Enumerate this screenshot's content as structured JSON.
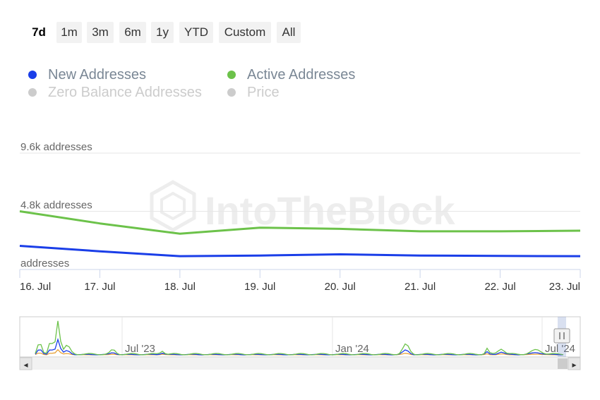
{
  "range_selector": {
    "buttons": [
      "7d",
      "1m",
      "3m",
      "6m",
      "1y",
      "YTD",
      "Custom",
      "All"
    ],
    "selected": "7d"
  },
  "legend": {
    "items": [
      {
        "label": "New Addresses",
        "color": "#1a3ee8",
        "enabled": true
      },
      {
        "label": "Active Addresses",
        "color": "#6cc24a",
        "enabled": true
      },
      {
        "label": "Zero Balance Addresses",
        "color": "#cccccc",
        "enabled": false
      },
      {
        "label": "Price",
        "color": "#cccccc",
        "enabled": false
      }
    ]
  },
  "watermark": "IntoTheBlock",
  "chart_data": {
    "type": "line",
    "x": [
      "16. Jul",
      "17. Jul",
      "18. Jul",
      "19. Jul",
      "20. Jul",
      "21. Jul",
      "22. Jul",
      "23. Jul"
    ],
    "yticks": [
      {
        "value": 0,
        "label": "addresses"
      },
      {
        "value": 4800,
        "label": "4.8k addresses"
      },
      {
        "value": 9600,
        "label": "9.6k addresses"
      }
    ],
    "ylim": [
      0,
      9600
    ],
    "series": [
      {
        "name": "New Addresses",
        "color": "#1a3ee8",
        "values": [
          1950,
          1500,
          1100,
          1150,
          1250,
          1150,
          1120,
          1100
        ]
      },
      {
        "name": "Active Addresses",
        "color": "#6cc24a",
        "values": [
          4800,
          3800,
          2950,
          3450,
          3350,
          3150,
          3150,
          3200
        ]
      }
    ],
    "grid": true,
    "legend_position": "top-left"
  },
  "navigator": {
    "labels": [
      "Jul '23",
      "Jan '24",
      "Jul '24"
    ],
    "scroll_left_symbol": "◂",
    "scroll_right_symbol": "▸",
    "series_colors": [
      "#6cc24a",
      "#1a3ee8",
      "#e8a23a"
    ]
  }
}
